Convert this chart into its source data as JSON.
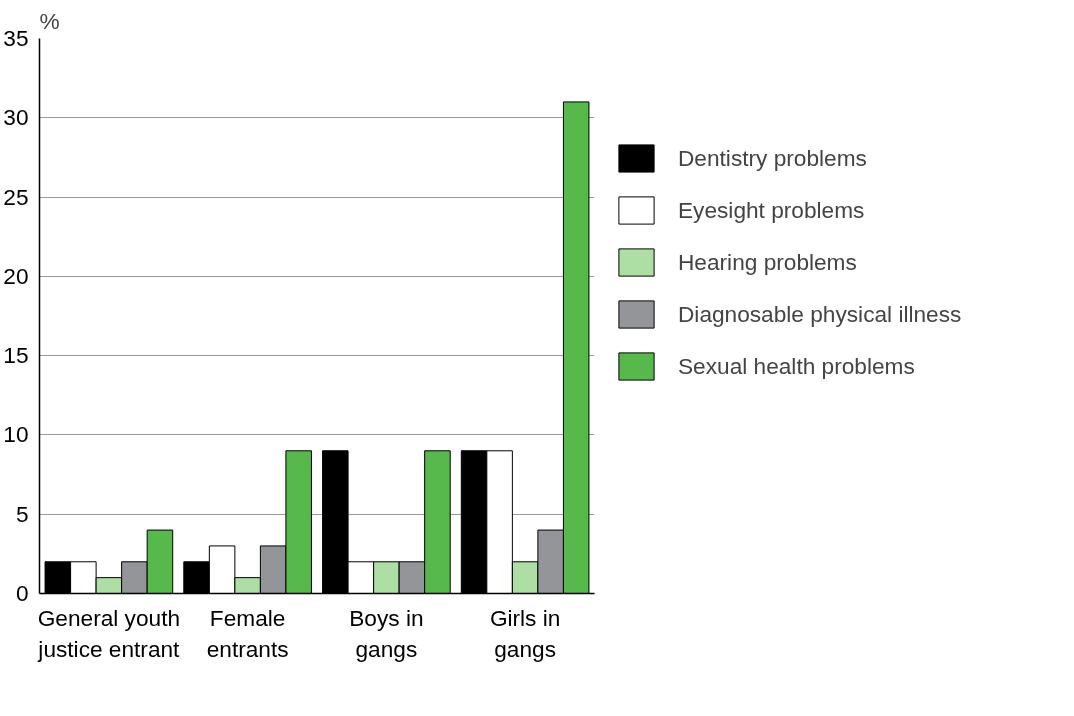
{
  "chart_data": {
    "type": "bar",
    "ylabel": "%",
    "categories": [
      "General youth justice entrant",
      "Female entrants",
      "Boys in gangs",
      "Girls in gangs"
    ],
    "series": [
      {
        "name": "Dentistry problems",
        "color": "#000000",
        "values": [
          2,
          2,
          9,
          9
        ]
      },
      {
        "name": "Eyesight problems",
        "color": "#ffffff",
        "values": [
          2,
          3,
          2,
          9
        ]
      },
      {
        "name": "Hearing problems",
        "color": "#addfa5",
        "values": [
          1,
          1,
          2,
          2
        ]
      },
      {
        "name": "Diagnosable physical illness",
        "color": "#939598",
        "values": [
          2,
          3,
          2,
          4
        ]
      },
      {
        "name": "Sexual health problems",
        "color": "#57b84c",
        "values": [
          4,
          9,
          9,
          31
        ]
      }
    ],
    "ylim": [
      0,
      35
    ],
    "yticks": [
      0,
      5,
      10,
      15,
      20,
      25,
      30,
      35
    ],
    "grid": "y",
    "legend": "right"
  }
}
